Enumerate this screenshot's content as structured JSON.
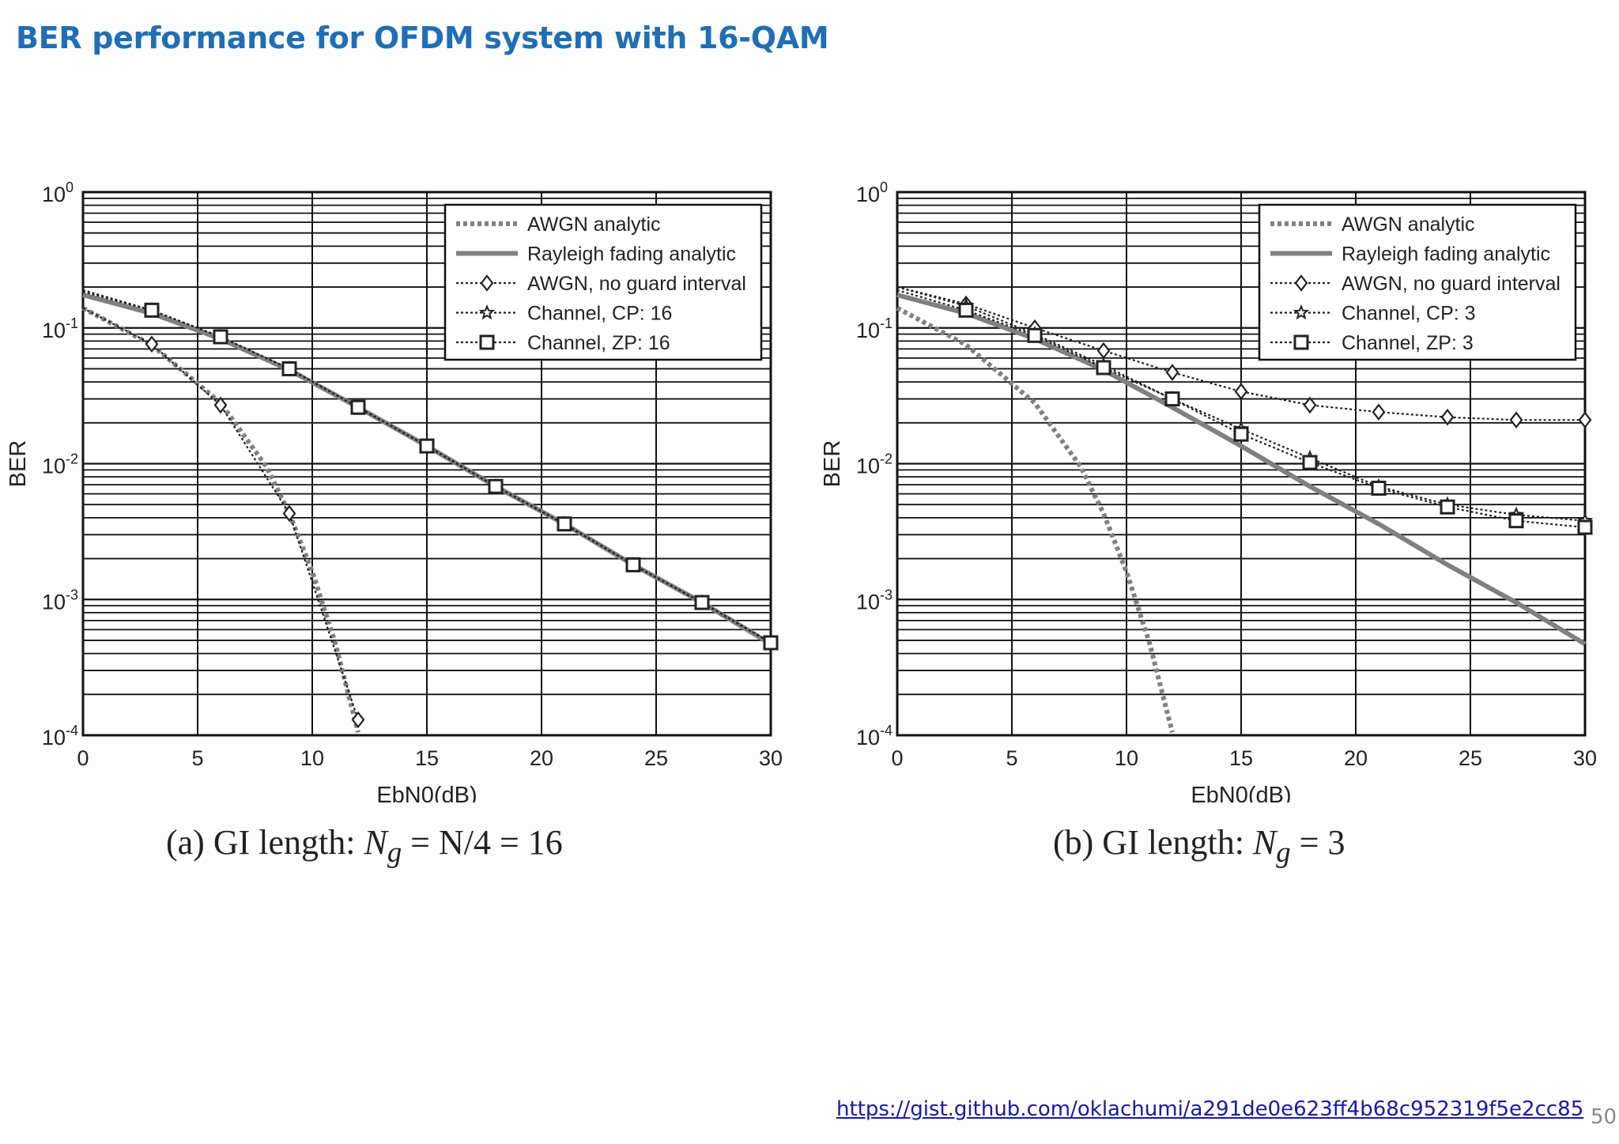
{
  "slide": {
    "title": "BER performance for OFDM system with 16-QAM",
    "link": "https://gist.github.com/oklachumi/a291de0e623ff4b68c952319f5e2cc85",
    "page_number": "50"
  },
  "captions": {
    "a": {
      "prefix": "(a) GI length: ",
      "var": "N",
      "sub": "g",
      "suffix": " = N/4 = 16"
    },
    "b": {
      "prefix": "(b) GI length: ",
      "var": "N",
      "sub": "g",
      "suffix": " = 3"
    }
  },
  "colors": {
    "analytic_gray": "#808080",
    "marker": "#222222",
    "grid": "#111111"
  },
  "chart_data": [
    {
      "type": "line",
      "y_scale": "log",
      "xlabel": "EbN0(dB)",
      "ylabel": "BER",
      "xlim": [
        0,
        30
      ],
      "ylim": [
        0.0001,
        1
      ],
      "x_ticks": [
        "0",
        "5",
        "10",
        "15",
        "20",
        "25",
        "30"
      ],
      "y_ticks": [
        {
          "base": "10",
          "exp": "0"
        },
        {
          "base": "10",
          "exp": "-1"
        },
        {
          "base": "10",
          "exp": "-2"
        },
        {
          "base": "10",
          "exp": "-3"
        },
        {
          "base": "10",
          "exp": "-4"
        }
      ],
      "grid": true,
      "legend_position": "top-right",
      "series": [
        {
          "name": "AWGN analytic",
          "style": "dotted-thick",
          "marker": "none",
          "x": [
            0,
            3,
            6,
            8,
            9,
            10,
            11,
            12
          ],
          "y": [
            0.14,
            0.075,
            0.028,
            0.0095,
            0.0043,
            0.0016,
            0.00048,
            0.000105
          ]
        },
        {
          "name": "Rayleigh fading analytic",
          "style": "solid-thick",
          "marker": "none",
          "x": [
            0,
            3,
            6,
            9,
            12,
            15,
            18,
            21,
            24,
            27,
            30
          ],
          "y": [
            0.175,
            0.128,
            0.083,
            0.049,
            0.026,
            0.0135,
            0.0068,
            0.0036,
            0.0018,
            0.00095,
            0.00047
          ]
        },
        {
          "name": "AWGN, no guard interval",
          "style": "dotted",
          "marker": "diamond",
          "x": [
            0,
            3,
            6,
            9,
            12
          ],
          "y": [
            0.14,
            0.076,
            0.027,
            0.0043,
            0.00013
          ]
        },
        {
          "name": "Channel, CP: 16",
          "style": "dotted",
          "marker": "star",
          "x": [
            0,
            3,
            6,
            9,
            12,
            15,
            18,
            21,
            24,
            27,
            30
          ],
          "y": [
            0.185,
            0.135,
            0.086,
            0.05,
            0.026,
            0.0135,
            0.0068,
            0.0036,
            0.0018,
            0.00095,
            0.00048
          ]
        },
        {
          "name": "Channel, ZP: 16",
          "style": "dotted",
          "marker": "square",
          "x": [
            0,
            3,
            6,
            9,
            12,
            15,
            18,
            21,
            24,
            27,
            30
          ],
          "y": [
            0.19,
            0.135,
            0.086,
            0.05,
            0.026,
            0.0135,
            0.0068,
            0.0036,
            0.0018,
            0.00095,
            0.00048
          ]
        }
      ]
    },
    {
      "type": "line",
      "y_scale": "log",
      "xlabel": "EbN0(dB)",
      "ylabel": "BER",
      "xlim": [
        0,
        30
      ],
      "ylim": [
        0.0001,
        1
      ],
      "x_ticks": [
        "0",
        "5",
        "10",
        "15",
        "20",
        "25",
        "30"
      ],
      "y_ticks": [
        {
          "base": "10",
          "exp": "0"
        },
        {
          "base": "10",
          "exp": "-1"
        },
        {
          "base": "10",
          "exp": "-2"
        },
        {
          "base": "10",
          "exp": "-3"
        },
        {
          "base": "10",
          "exp": "-4"
        }
      ],
      "grid": true,
      "legend_position": "top-right",
      "series": [
        {
          "name": "AWGN analytic",
          "style": "dotted-thick",
          "marker": "none",
          "x": [
            0,
            3,
            6,
            8,
            9,
            10,
            11,
            12
          ],
          "y": [
            0.14,
            0.075,
            0.028,
            0.0095,
            0.0043,
            0.0016,
            0.00048,
            0.000105
          ]
        },
        {
          "name": "Rayleigh fading analytic",
          "style": "solid-thick",
          "marker": "none",
          "x": [
            0,
            3,
            6,
            9,
            12,
            15,
            18,
            21,
            24,
            27,
            30
          ],
          "y": [
            0.175,
            0.128,
            0.083,
            0.049,
            0.026,
            0.0135,
            0.0068,
            0.0036,
            0.0018,
            0.00095,
            0.00047
          ]
        },
        {
          "name": "AWGN, no guard interval",
          "style": "dotted",
          "marker": "diamond",
          "x": [
            0,
            3,
            6,
            9,
            12,
            15,
            18,
            21,
            24,
            27,
            30
          ],
          "y": [
            0.2,
            0.15,
            0.1,
            0.068,
            0.047,
            0.034,
            0.027,
            0.024,
            0.022,
            0.021,
            0.021
          ]
        },
        {
          "name": "Channel, CP: 3",
          "style": "dotted",
          "marker": "star",
          "x": [
            0,
            3,
            6,
            9,
            12,
            15,
            18,
            21,
            24,
            27,
            30
          ],
          "y": [
            0.2,
            0.145,
            0.09,
            0.053,
            0.03,
            0.018,
            0.011,
            0.0068,
            0.005,
            0.0042,
            0.0038
          ]
        },
        {
          "name": "Channel, ZP: 3",
          "style": "dotted",
          "marker": "square",
          "x": [
            0,
            3,
            6,
            9,
            12,
            15,
            18,
            21,
            24,
            27,
            30
          ],
          "y": [
            0.19,
            0.135,
            0.088,
            0.051,
            0.03,
            0.0165,
            0.0102,
            0.0066,
            0.0048,
            0.0038,
            0.0034
          ]
        }
      ]
    }
  ]
}
